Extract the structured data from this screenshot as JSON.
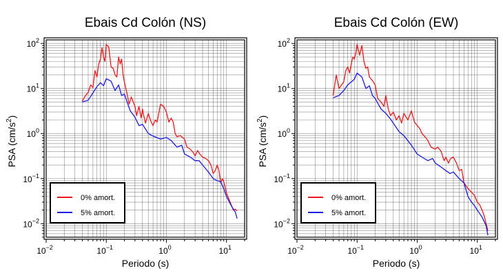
{
  "chart_data": [
    {
      "type": "line",
      "title": "Ebais Cd Colón (NS)",
      "xlabel": "Periodo (s)",
      "ylabel": "PSA (cm/s²)",
      "ylabel_base": "PSA (cm/s",
      "ylabel_exp": "2",
      "ylabel_end": ")",
      "x_scale": "log",
      "y_scale": "log",
      "xlim": [
        0.01,
        20
      ],
      "ylim": [
        0.005,
        120
      ],
      "grid": true,
      "legend_position": "bottom-left",
      "x_ticks": [
        {
          "base": "10",
          "exp": "−2"
        },
        {
          "base": "10",
          "exp": "−1"
        },
        {
          "base": "10",
          "exp": "0"
        },
        {
          "base": "10",
          "exp": "1"
        }
      ],
      "y_ticks": [
        {
          "base": "10",
          "exp": "−2"
        },
        {
          "base": "10",
          "exp": "−1"
        },
        {
          "base": "10",
          "exp": "0"
        },
        {
          "base": "10",
          "exp": "1"
        },
        {
          "base": "10",
          "exp": "2"
        }
      ],
      "series": [
        {
          "name": "0% amort.",
          "color": "#e8191c",
          "x": [
            0.04,
            0.045,
            0.05,
            0.055,
            0.06,
            0.065,
            0.07,
            0.075,
            0.08,
            0.085,
            0.09,
            0.095,
            0.1,
            0.105,
            0.11,
            0.12,
            0.13,
            0.14,
            0.15,
            0.16,
            0.17,
            0.18,
            0.19,
            0.2,
            0.22,
            0.24,
            0.26,
            0.28,
            0.3,
            0.32,
            0.35,
            0.38,
            0.4,
            0.42,
            0.45,
            0.5,
            0.55,
            0.6,
            0.65,
            0.7,
            0.8,
            0.9,
            1.0,
            1.1,
            1.2,
            1.3,
            1.4,
            1.5,
            1.7,
            2.0,
            2.2,
            2.5,
            2.8,
            3.0,
            3.3,
            3.6,
            4.0,
            4.5,
            5.0,
            5.5,
            6.0,
            6.5,
            7.0,
            7.5,
            8.0,
            8.5,
            9.0,
            10.0,
            11.0,
            12.0,
            13.0,
            14.0,
            15.0
          ],
          "y": [
            5.2,
            7.0,
            8.2,
            12.0,
            10.5,
            25.0,
            18.0,
            35.0,
            45.0,
            80.0,
            50.0,
            40.0,
            95.0,
            88.0,
            82.0,
            30.0,
            28.0,
            20.0,
            18.0,
            50.0,
            35.0,
            45.0,
            20.0,
            14.0,
            8.0,
            4.5,
            6.5,
            5.0,
            4.0,
            2.5,
            4.0,
            2.2,
            3.5,
            2.5,
            1.7,
            2.8,
            1.9,
            1.5,
            2.0,
            1.8,
            4.5,
            4.0,
            3.0,
            1.8,
            2.2,
            1.8,
            1.0,
            0.85,
            0.9,
            0.75,
            0.5,
            0.45,
            0.38,
            0.32,
            0.42,
            0.35,
            0.3,
            0.28,
            0.25,
            0.2,
            0.13,
            0.15,
            0.2,
            0.15,
            0.08,
            0.1,
            0.085,
            0.048,
            0.035,
            0.026,
            0.02,
            0.021,
            0.019
          ]
        },
        {
          "name": "5% amort.",
          "color": "#1a1ae6",
          "x": [
            0.04,
            0.05,
            0.06,
            0.07,
            0.08,
            0.09,
            0.1,
            0.12,
            0.14,
            0.16,
            0.18,
            0.2,
            0.25,
            0.3,
            0.35,
            0.4,
            0.5,
            0.6,
            0.8,
            1.0,
            1.2,
            1.5,
            1.8,
            2.0,
            2.5,
            3.0,
            3.5,
            4.0,
            5.0,
            6.0,
            7.0,
            8.0,
            9.0,
            10.0,
            12.0,
            14.0,
            15.0
          ],
          "y": [
            5.0,
            5.5,
            8.0,
            11.0,
            13.5,
            11.5,
            16.5,
            14.5,
            9.0,
            12.0,
            7.0,
            7.5,
            3.2,
            2.3,
            1.5,
            1.6,
            1.0,
            0.88,
            0.75,
            0.82,
            0.7,
            0.5,
            0.55,
            0.35,
            0.3,
            0.25,
            0.25,
            0.2,
            0.14,
            0.1,
            0.09,
            0.085,
            0.06,
            0.04,
            0.025,
            0.018,
            0.013
          ]
        }
      ]
    },
    {
      "type": "line",
      "title": "Ebais Cd Colón (EW)",
      "xlabel": "Periodo (s)",
      "ylabel": "PSA (cm/s²)",
      "ylabel_base": "PSA (cm/s",
      "ylabel_exp": "2",
      "ylabel_end": ")",
      "x_scale": "log",
      "y_scale": "log",
      "xlim": [
        0.01,
        20
      ],
      "ylim": [
        0.005,
        120
      ],
      "grid": true,
      "legend_position": "bottom-left",
      "x_ticks": [
        {
          "base": "10",
          "exp": "−2"
        },
        {
          "base": "10",
          "exp": "−1"
        },
        {
          "base": "10",
          "exp": "0"
        },
        {
          "base": "10",
          "exp": "1"
        }
      ],
      "y_ticks": [
        {
          "base": "10",
          "exp": "−2"
        },
        {
          "base": "10",
          "exp": "−1"
        },
        {
          "base": "10",
          "exp": "0"
        },
        {
          "base": "10",
          "exp": "1"
        },
        {
          "base": "10",
          "exp": "2"
        }
      ],
      "series": [
        {
          "name": "0% amort.",
          "color": "#e8191c",
          "x": [
            0.04,
            0.045,
            0.05,
            0.055,
            0.06,
            0.065,
            0.07,
            0.075,
            0.08,
            0.085,
            0.09,
            0.095,
            0.1,
            0.11,
            0.12,
            0.13,
            0.14,
            0.15,
            0.16,
            0.18,
            0.2,
            0.22,
            0.25,
            0.28,
            0.3,
            0.33,
            0.36,
            0.4,
            0.45,
            0.5,
            0.55,
            0.6,
            0.7,
            0.8,
            0.9,
            1.0,
            1.1,
            1.2,
            1.4,
            1.5,
            1.7,
            2.0,
            2.2,
            2.5,
            2.8,
            3.0,
            3.3,
            3.6,
            4.0,
            4.5,
            5.0,
            5.5,
            6.0,
            7.0,
            8.0,
            9.0,
            10.0,
            11.0,
            12.0,
            13.0,
            14.0,
            15.0
          ],
          "y": [
            7.0,
            20.0,
            10.0,
            12.0,
            14.0,
            25.0,
            30.0,
            22.0,
            35.0,
            50.0,
            45.0,
            60.0,
            95.0,
            55.0,
            90.0,
            40.0,
            28.0,
            30.0,
            18.0,
            15.0,
            12.0,
            6.0,
            5.0,
            4.0,
            7.0,
            3.5,
            2.5,
            3.0,
            2.0,
            2.5,
            1.7,
            2.8,
            2.0,
            3.2,
            1.8,
            1.5,
            1.3,
            1.0,
            0.8,
            0.7,
            0.5,
            0.45,
            0.5,
            0.4,
            0.25,
            0.3,
            0.22,
            0.28,
            0.3,
            0.22,
            0.15,
            0.16,
            0.08,
            0.06,
            0.05,
            0.042,
            0.03,
            0.026,
            0.02,
            0.015,
            0.01,
            0.007
          ]
        },
        {
          "name": "5% amort.",
          "color": "#1a1ae6",
          "x": [
            0.04,
            0.05,
            0.06,
            0.07,
            0.08,
            0.09,
            0.1,
            0.12,
            0.14,
            0.16,
            0.18,
            0.2,
            0.25,
            0.3,
            0.35,
            0.4,
            0.5,
            0.6,
            0.8,
            1.0,
            1.2,
            1.5,
            1.8,
            2.0,
            2.5,
            3.0,
            3.5,
            4.0,
            5.0,
            6.0,
            7.0,
            8.0,
            9.0,
            10.0,
            12.0,
            14.0,
            15.0
          ],
          "y": [
            6.2,
            7.0,
            9.0,
            12.0,
            14.0,
            16.0,
            22.0,
            18.0,
            10.0,
            11.5,
            7.0,
            6.0,
            3.5,
            2.8,
            2.2,
            1.7,
            1.1,
            0.9,
            0.55,
            0.35,
            0.3,
            0.25,
            0.28,
            0.22,
            0.18,
            0.15,
            0.13,
            0.14,
            0.1,
            0.08,
            0.04,
            0.03,
            0.025,
            0.02,
            0.014,
            0.009,
            0.0055
          ]
        }
      ]
    }
  ]
}
